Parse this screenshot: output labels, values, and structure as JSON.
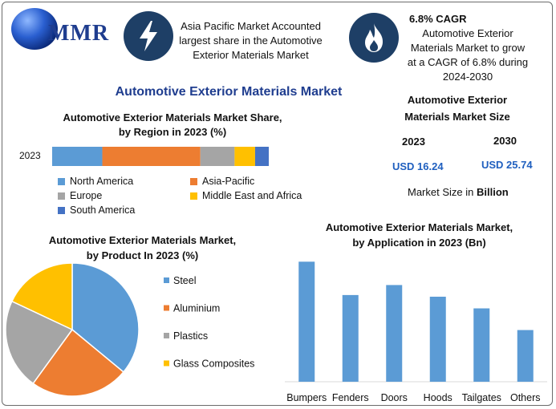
{
  "logo": {
    "text": "MMR"
  },
  "header": {
    "fact1": [
      "Asia Pacific Market Accounted",
      "largest share in the Automotive",
      "Exterior Materials Market"
    ],
    "cagr_title": "6.8% CAGR",
    "fact2": [
      "Automotive Exterior",
      "Materials Market to grow",
      "at a CAGR of 6.8% during",
      "2024-2030"
    ]
  },
  "main_title": "Automotive Exterior Materials Market",
  "market_size": {
    "title": [
      "Automotive Exterior",
      "Materials Market Size"
    ],
    "year1": "2023",
    "year2": "2030",
    "value1": "USD 16.24",
    "value2": "USD 25.74",
    "note_prefix": "Market Size in ",
    "note_bold": "Billion"
  },
  "colors": {
    "north_america": "#5b9bd5",
    "asia_pacific": "#ed7d31",
    "europe": "#a5a5a5",
    "mea": "#ffc000",
    "south_america": "#4472c4",
    "bar": "#5b9bd5",
    "icon_bg": "#1e3f66"
  },
  "icons": [
    "globe-logo-icon",
    "lightning-icon",
    "flame-icon"
  ],
  "chart_data": [
    {
      "type": "bar",
      "orientation": "horizontal-stacked",
      "title": [
        "Automotive Exterior Materials Market Share,",
        "by Region in 2023 (%)"
      ],
      "categories": [
        "2023"
      ],
      "series": [
        {
          "name": "North America",
          "values": [
            22
          ]
        },
        {
          "name": "Asia-Pacific",
          "values": [
            43
          ]
        },
        {
          "name": "Europe",
          "values": [
            15
          ]
        },
        {
          "name": "Middle East and Africa",
          "values": [
            9
          ]
        },
        {
          "name": "South America",
          "values": [
            6
          ]
        }
      ],
      "legend": "bottom"
    },
    {
      "type": "pie",
      "title": [
        "Automotive Exterior Materials Market,",
        "by Product In 2023 (%)"
      ],
      "labels": [
        "Steel",
        "Aluminium",
        "Plastics",
        "Glass Composites"
      ],
      "values": [
        36,
        24,
        22,
        18
      ],
      "legend": "right"
    },
    {
      "type": "bar",
      "title": [
        "Automotive Exterior Materials Market,",
        "by Application in 2023 (Bn)"
      ],
      "categories": [
        "Bumpers",
        "Fenders",
        "Doors",
        "Hoods",
        "Tailgates",
        "Others"
      ],
      "values": [
        3.6,
        2.6,
        2.9,
        2.55,
        2.2,
        1.55
      ],
      "ylim": [
        0,
        3.8
      ],
      "grid": false
    }
  ]
}
